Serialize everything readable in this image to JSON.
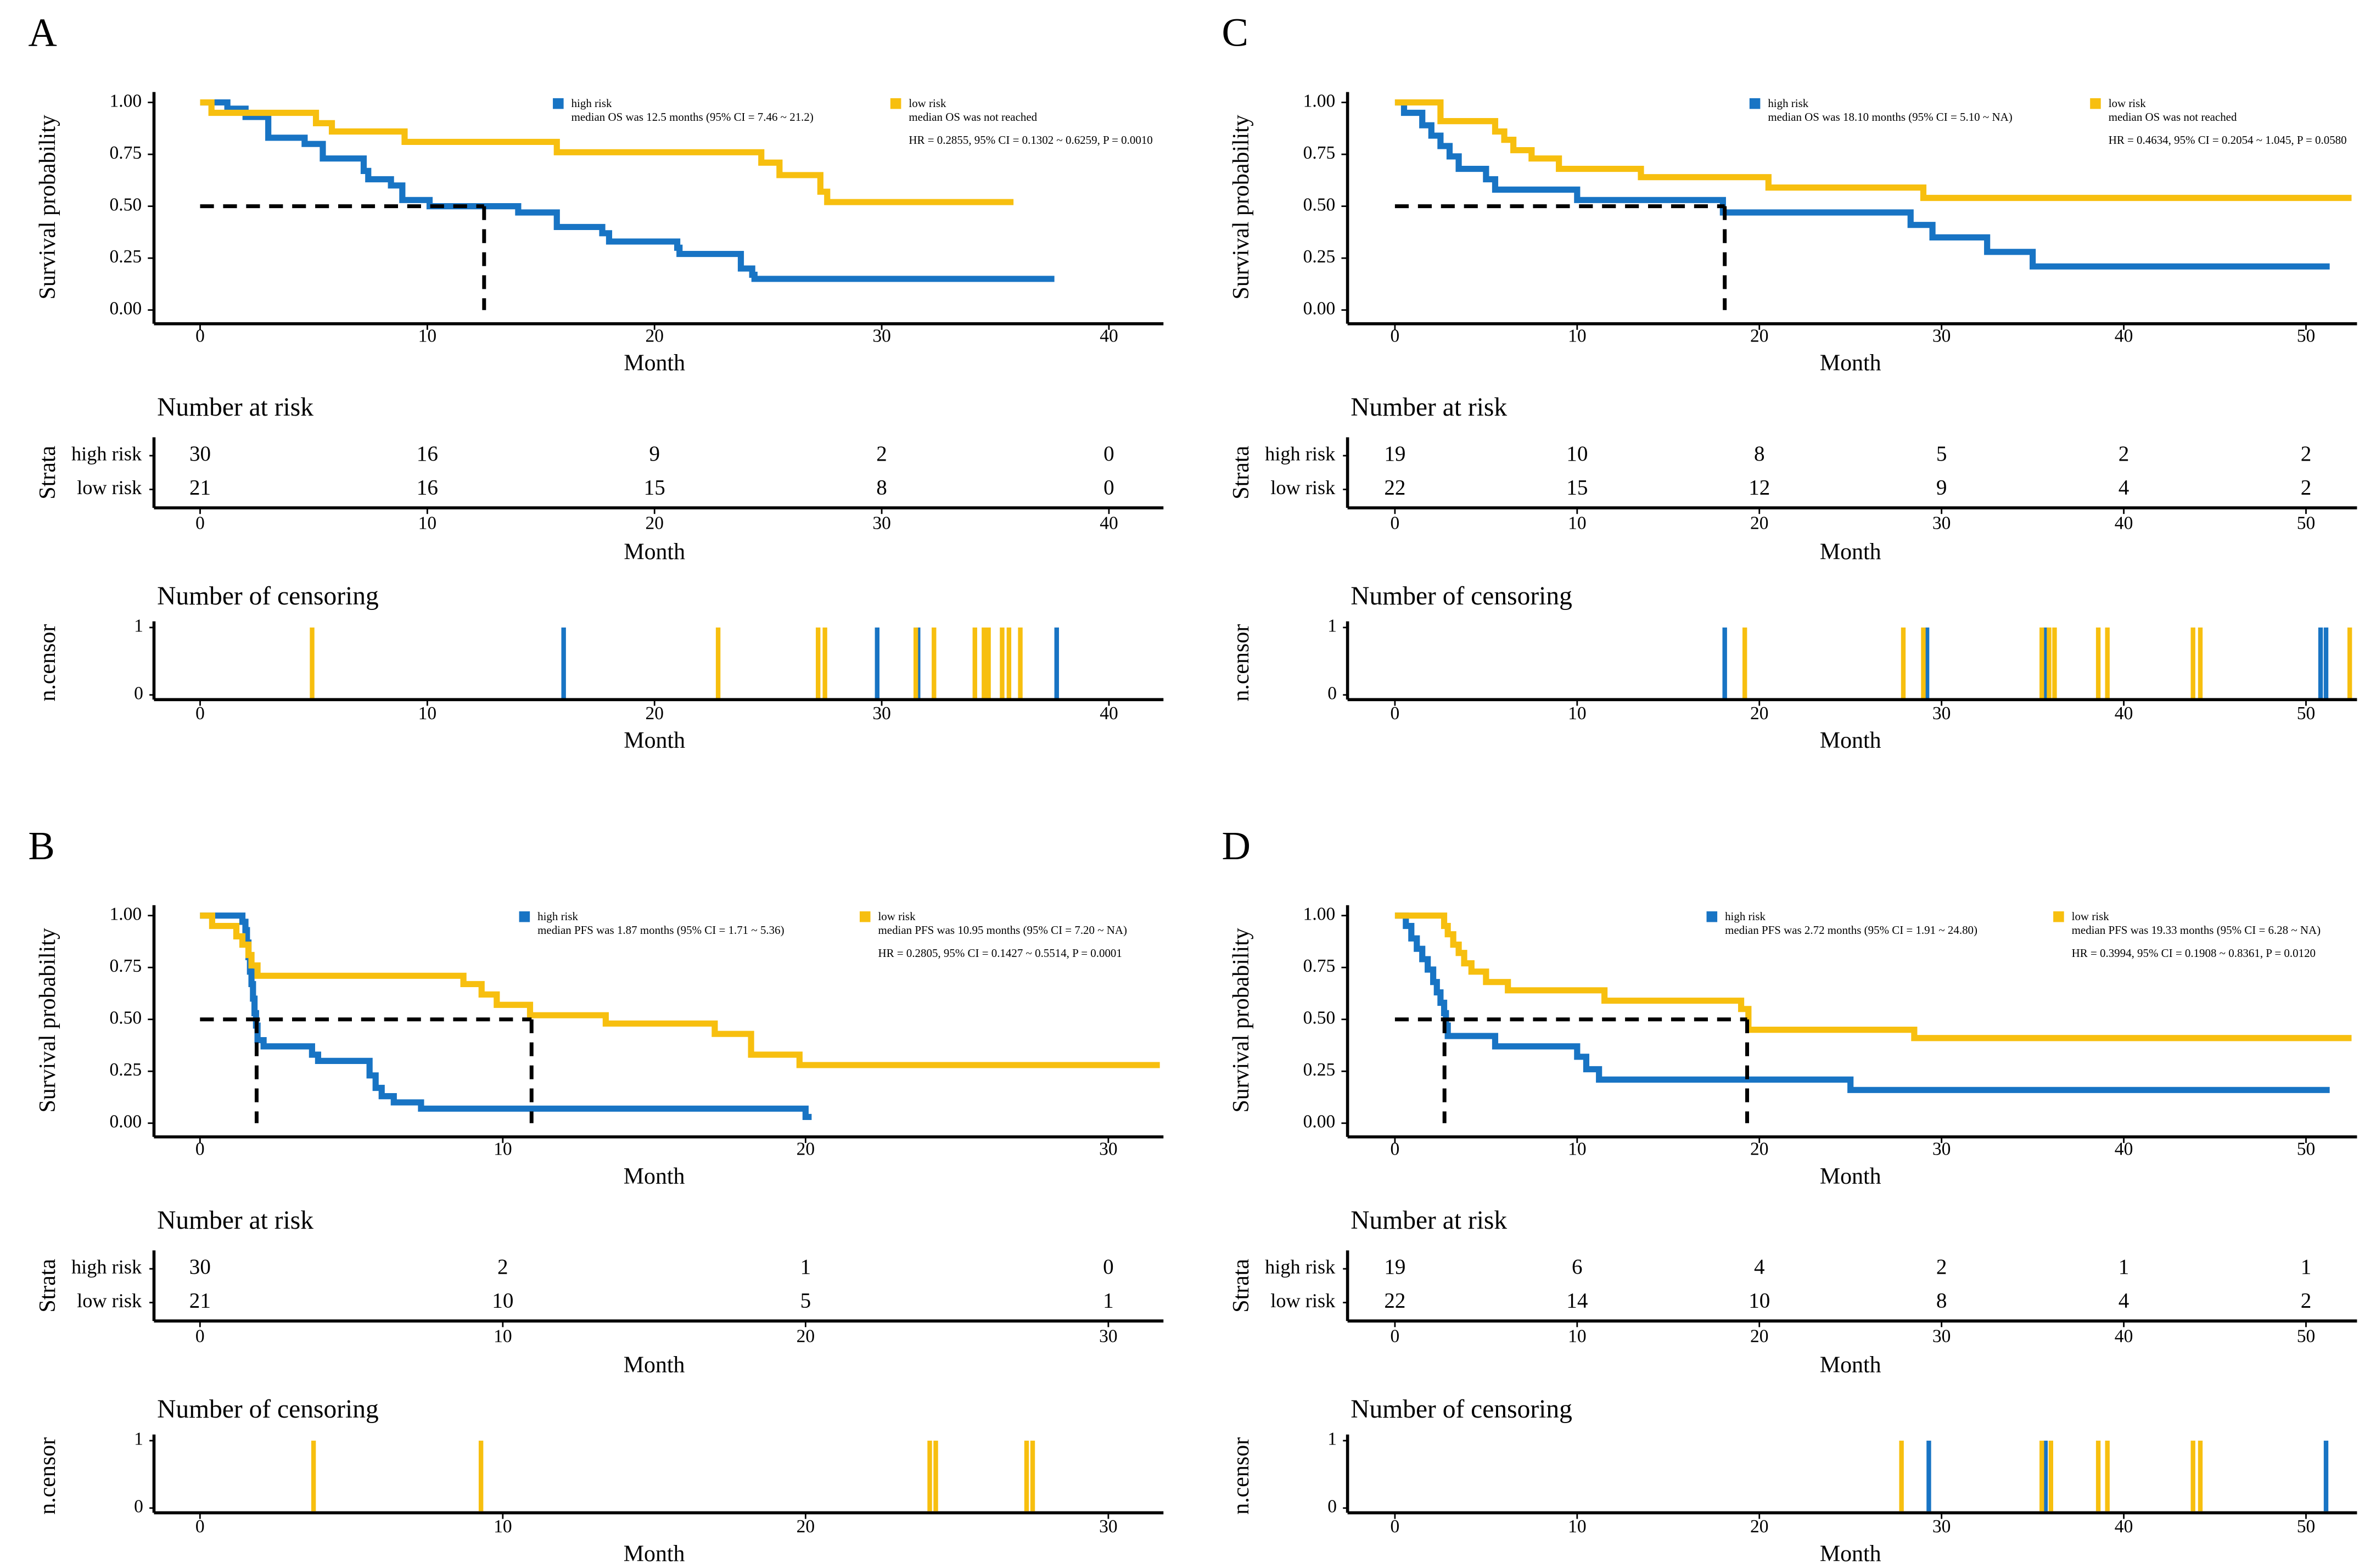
{
  "chart_data": [
    {
      "type": "km",
      "panel_label": "A",
      "xlabel": "Month",
      "ylabel": "Survival probability",
      "xlim": [
        -2.03,
        42.4
      ],
      "xticks": [
        0,
        10,
        20,
        30,
        40
      ],
      "ylim": [
        -0.066,
        1.05
      ],
      "yticks": [
        {
          "value": 0,
          "label": "0.00"
        },
        {
          "value": 0.25,
          "label": "0.25"
        },
        {
          "value": 0.5,
          "label": "0.50"
        },
        {
          "value": 0.75,
          "label": "0.75"
        },
        {
          "value": 1,
          "label": "1.00"
        }
      ],
      "median_survival": 0.5,
      "median_x": [
        12.5
      ],
      "annotation": "HR = 0.2855, 95% CI = 0.1302 ~ 0.6259, P = 0.0010",
      "series": [
        {
          "name": "high risk",
          "note": "median OS was 12.5 months (95% CI = 7.46 ~ 21.2)",
          "color": "#1874c4",
          "x": [
            0,
            1.2,
            2,
            3,
            4.6,
            5.4,
            7.2,
            7.4,
            8.4,
            8.9,
            10.1,
            14,
            15.7,
            17.7,
            18,
            21,
            21.1,
            23.8,
            24.3,
            24.4,
            37.6
          ],
          "values": [
            1,
            0.97,
            0.93,
            0.83,
            0.8,
            0.73,
            0.67,
            0.63,
            0.6,
            0.53,
            0.5,
            0.47,
            0.4,
            0.37,
            0.33,
            0.3,
            0.27,
            0.2,
            0.17,
            0.15,
            0.15
          ]
        },
        {
          "name": "low risk",
          "note": "median OS was not reached",
          "color": "#f7bf0f",
          "x": [
            0,
            0.5,
            5.1,
            5.8,
            9,
            15.7,
            24.7,
            25.5,
            27.3,
            27.6,
            35.8
          ],
          "values": [
            1,
            0.95,
            0.9,
            0.86,
            0.81,
            0.76,
            0.71,
            0.65,
            0.57,
            0.52,
            0.52
          ]
        }
      ]
    },
    {
      "type": "risk_table",
      "title": "Number at risk",
      "xlabel": "Month",
      "ylabel": "Strata",
      "xlim": [
        -2.03,
        42.4
      ],
      "xticks": [
        0,
        10,
        20,
        30,
        40
      ],
      "series": [
        {
          "name": "high risk",
          "color": "#1874c4",
          "values": [
            30,
            16,
            9,
            2,
            0
          ]
        },
        {
          "name": "low risk",
          "color": "#f7bf0f",
          "values": [
            21,
            16,
            15,
            8,
            0
          ]
        }
      ]
    },
    {
      "type": "censor",
      "title": "Number of censoring",
      "xlabel": "Month",
      "ylabel": "n.censor",
      "xlim": [
        -2.03,
        42.4
      ],
      "xticks": [
        0,
        10,
        20,
        30,
        40
      ],
      "ylim": [
        -0.07,
        1
      ],
      "yticks": [
        0,
        1
      ],
      "series": [
        {
          "name": "high risk",
          "color": "#1874c4",
          "x": [
            16.0,
            29.8,
            31.6,
            37.7
          ],
          "values": [
            1,
            1,
            1,
            1
          ]
        },
        {
          "name": "low risk",
          "color": "#f7bf0f",
          "x": [
            4.93,
            22.8,
            27.2,
            27.5,
            31.5,
            32.3,
            34.1,
            34.5,
            34.7,
            35.3,
            35.6,
            36.1
          ],
          "values": [
            1,
            1,
            1,
            1,
            1,
            1,
            1,
            1,
            1,
            1,
            1,
            1
          ]
        }
      ]
    },
    {
      "type": "km",
      "panel_label": "C",
      "xlabel": "Month",
      "ylabel": "Survival probability",
      "xlim": [
        -2.6,
        52.8
      ],
      "xticks": [
        0,
        10,
        20,
        30,
        40,
        50
      ],
      "ylim": [
        -0.066,
        1.05
      ],
      "yticks": [
        {
          "value": 0,
          "label": "0.00"
        },
        {
          "value": 0.25,
          "label": "0.25"
        },
        {
          "value": 0.5,
          "label": "0.50"
        },
        {
          "value": 0.75,
          "label": "0.75"
        },
        {
          "value": 1,
          "label": "1.00"
        }
      ],
      "median_survival": 0.5,
      "median_x": [
        18.1
      ],
      "annotation": "HR = 0.4634, 95% CI = 0.2054 ~ 1.045, P = 0.0580",
      "series": [
        {
          "name": "high risk",
          "note": "median OS was 18.10 months (95% CI = 5.10 ~ NA)",
          "color": "#1874c4",
          "x": [
            0,
            0.5,
            1.5,
            2,
            2.5,
            3,
            3.5,
            5,
            5.5,
            10,
            18,
            28.3,
            29.5,
            32.5,
            35,
            51.3
          ],
          "values": [
            1,
            0.95,
            0.89,
            0.84,
            0.79,
            0.74,
            0.68,
            0.63,
            0.58,
            0.53,
            0.47,
            0.41,
            0.35,
            0.28,
            0.21,
            0.21
          ]
        },
        {
          "name": "low risk",
          "note": "median OS was not reached",
          "color": "#f7bf0f",
          "x": [
            0,
            2.5,
            5.5,
            6,
            6.5,
            7.5,
            9,
            13.5,
            20.5,
            29,
            52.5
          ],
          "values": [
            1,
            0.91,
            0.86,
            0.82,
            0.77,
            0.73,
            0.68,
            0.64,
            0.59,
            0.54,
            0.54
          ]
        }
      ]
    },
    {
      "type": "risk_table",
      "title": "Number at risk",
      "xlabel": "Month",
      "ylabel": "Strata",
      "xlim": [
        -2.6,
        52.8
      ],
      "xticks": [
        0,
        10,
        20,
        30,
        40,
        50
      ],
      "series": [
        {
          "name": "high risk",
          "color": "#1874c4",
          "values": [
            19,
            10,
            8,
            5,
            2,
            2
          ]
        },
        {
          "name": "low risk",
          "color": "#f7bf0f",
          "values": [
            22,
            15,
            12,
            9,
            4,
            2
          ]
        }
      ]
    },
    {
      "type": "censor",
      "title": "Number of censoring",
      "xlabel": "Month",
      "ylabel": "n.censor",
      "xlim": [
        -2.6,
        52.8
      ],
      "xticks": [
        0,
        10,
        20,
        30,
        40,
        50
      ],
      "ylim": [
        -0.07,
        1
      ],
      "yticks": [
        0,
        1
      ],
      "series": [
        {
          "name": "high risk",
          "color": "#1874c4",
          "x": [
            18.1,
            29.2,
            35.7,
            50.8,
            51.1
          ],
          "values": [
            1,
            1,
            1,
            1,
            1
          ]
        },
        {
          "name": "low risk",
          "color": "#f7bf0f",
          "x": [
            19.2,
            27.9,
            29.0,
            35.5,
            35.9,
            36.2,
            38.6,
            39.1,
            43.8,
            44.2,
            52.4
          ],
          "values": [
            1,
            1,
            1,
            1,
            1,
            1,
            1,
            1,
            1,
            1,
            1
          ]
        }
      ]
    },
    {
      "type": "km",
      "panel_label": "B",
      "xlabel": "Month",
      "ylabel": "Survival probability",
      "xlim": [
        -1.52,
        31.82
      ],
      "xticks": [
        0,
        10,
        20,
        30
      ],
      "ylim": [
        -0.066,
        1.05
      ],
      "yticks": [
        {
          "value": 0,
          "label": "0.00"
        },
        {
          "value": 0.25,
          "label": "0.25"
        },
        {
          "value": 0.5,
          "label": "0.50"
        },
        {
          "value": 0.75,
          "label": "0.75"
        },
        {
          "value": 1,
          "label": "1.00"
        }
      ],
      "median_survival": 0.5,
      "median_x": [
        1.87,
        10.95
      ],
      "annotation": "HR = 0.2805, 95% CI = 0.1427 ~ 0.5514, P = 0.0001",
      "series": [
        {
          "name": "high risk",
          "note": "median PFS was 1.87 months (95% CI = 1.71 ~ 5.36)",
          "color": "#1874c4",
          "x": [
            0,
            1.4,
            1.5,
            1.55,
            1.6,
            1.65,
            1.7,
            1.75,
            1.8,
            1.85,
            1.9,
            2.1,
            3.7,
            3.9,
            5.6,
            5.8,
            6.0,
            6.4,
            7.3,
            20,
            20.2
          ],
          "values": [
            1,
            0.97,
            0.93,
            0.87,
            0.8,
            0.73,
            0.67,
            0.6,
            0.53,
            0.47,
            0.4,
            0.37,
            0.33,
            0.3,
            0.23,
            0.17,
            0.13,
            0.1,
            0.07,
            0.03,
            0.03
          ]
        },
        {
          "name": "low risk",
          "note": "median PFS was 10.95 months (95% CI = 7.20 ~ NA)",
          "color": "#f7bf0f",
          "x": [
            0,
            0.4,
            1.2,
            1.4,
            1.6,
            1.7,
            1.9,
            8.7,
            9.3,
            9.8,
            10.9,
            13.4,
            17,
            18.2,
            19.8,
            31.7
          ],
          "values": [
            1,
            0.95,
            0.9,
            0.86,
            0.81,
            0.76,
            0.71,
            0.67,
            0.62,
            0.57,
            0.52,
            0.48,
            0.43,
            0.33,
            0.28,
            0.28
          ]
        }
      ]
    },
    {
      "type": "risk_table",
      "title": "Number at risk",
      "xlabel": "Month",
      "ylabel": "Strata",
      "xlim": [
        -1.52,
        31.82
      ],
      "xticks": [
        0,
        10,
        20,
        30
      ],
      "series": [
        {
          "name": "high risk",
          "color": "#1874c4",
          "values": [
            30,
            2,
            1,
            0
          ]
        },
        {
          "name": "low risk",
          "color": "#f7bf0f",
          "values": [
            21,
            10,
            5,
            1
          ]
        }
      ]
    },
    {
      "type": "censor",
      "title": "Number of censoring",
      "xlabel": "Month",
      "ylabel": "n.censor",
      "xlim": [
        -1.52,
        31.82
      ],
      "xticks": [
        0,
        10,
        20,
        30
      ],
      "ylim": [
        -0.07,
        1
      ],
      "yticks": [
        0,
        1
      ],
      "series": [
        {
          "name": "low risk",
          "color": "#f7bf0f",
          "x": [
            3.75,
            9.28,
            24.1,
            24.3,
            27.3,
            27.5
          ],
          "values": [
            1,
            1,
            1,
            1,
            1,
            1
          ]
        }
      ]
    },
    {
      "type": "km",
      "panel_label": "D",
      "xlabel": "Month",
      "ylabel": "Survival probability",
      "xlim": [
        -2.6,
        52.8
      ],
      "xticks": [
        0,
        10,
        20,
        30,
        40,
        50
      ],
      "ylim": [
        -0.066,
        1.05
      ],
      "yticks": [
        {
          "value": 0,
          "label": "0.00"
        },
        {
          "value": 0.25,
          "label": "0.25"
        },
        {
          "value": 0.5,
          "label": "0.50"
        },
        {
          "value": 0.75,
          "label": "0.75"
        },
        {
          "value": 1,
          "label": "1.00"
        }
      ],
      "median_survival": 0.5,
      "median_x": [
        2.72,
        19.33
      ],
      "annotation": "HR = 0.3994, 95% CI = 0.1908 ~ 0.8361, P = 0.0120",
      "series": [
        {
          "name": "high risk",
          "note": "median PFS was 2.72 months (95% CI = 1.91 ~ 24.80)",
          "color": "#1874c4",
          "x": [
            0,
            0.6,
            0.9,
            1.2,
            1.5,
            1.8,
            2.1,
            2.3,
            2.5,
            2.7,
            2.8,
            2.9,
            5.5,
            10,
            10.5,
            11.2,
            25,
            51.3
          ],
          "values": [
            1,
            0.95,
            0.89,
            0.84,
            0.79,
            0.74,
            0.68,
            0.63,
            0.58,
            0.53,
            0.47,
            0.42,
            0.37,
            0.32,
            0.26,
            0.21,
            0.16,
            0.16
          ]
        },
        {
          "name": "low risk",
          "note": "median PFS was 19.33 months (95% CI = 6.28 ~ NA)",
          "color": "#f7bf0f",
          "x": [
            0,
            2.7,
            2.9,
            3.2,
            3.5,
            3.8,
            4.2,
            5,
            6.2,
            11.5,
            19,
            19.4,
            28.5,
            52.5
          ],
          "values": [
            1,
            0.95,
            0.91,
            0.86,
            0.82,
            0.77,
            0.73,
            0.68,
            0.64,
            0.59,
            0.55,
            0.45,
            0.41,
            0.41
          ]
        }
      ]
    },
    {
      "type": "risk_table",
      "title": "Number at risk",
      "xlabel": "Month",
      "ylabel": "Strata",
      "xlim": [
        -2.6,
        52.8
      ],
      "xticks": [
        0,
        10,
        20,
        30,
        40,
        50
      ],
      "series": [
        {
          "name": "high risk",
          "color": "#1874c4",
          "values": [
            19,
            6,
            4,
            2,
            1,
            1
          ]
        },
        {
          "name": "low risk",
          "color": "#f7bf0f",
          "values": [
            22,
            14,
            10,
            8,
            4,
            2
          ]
        }
      ]
    },
    {
      "type": "censor",
      "title": "Number of censoring",
      "xlabel": "Month",
      "ylabel": "n.censor",
      "xlim": [
        -2.6,
        52.8
      ],
      "xticks": [
        0,
        10,
        20,
        30,
        40,
        50
      ],
      "ylim": [
        -0.07,
        1
      ],
      "yticks": [
        0,
        1
      ],
      "series": [
        {
          "name": "high risk",
          "color": "#1874c4",
          "x": [
            29.3,
            35.7,
            51.1
          ],
          "values": [
            1,
            1,
            1
          ]
        },
        {
          "name": "low risk",
          "color": "#f7bf0f",
          "x": [
            27.8,
            35.5,
            36.0,
            38.6,
            39.1,
            43.8,
            44.2
          ],
          "values": [
            1,
            1,
            1,
            1,
            1,
            1,
            1
          ]
        }
      ]
    }
  ]
}
